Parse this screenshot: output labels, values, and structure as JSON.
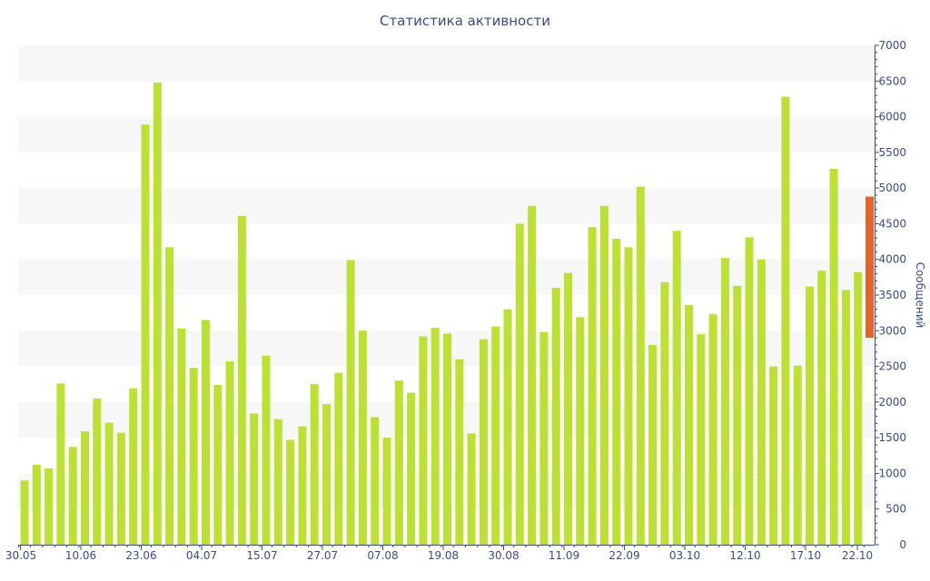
{
  "chart_data": {
    "type": "bar",
    "title": "Статистика активности",
    "ylabel": "Сообщений",
    "xlabel": "",
    "ylim": [
      0,
      7000
    ],
    "y_ticks": [
      0,
      500,
      1000,
      1500,
      2000,
      2500,
      3000,
      3500,
      4000,
      4500,
      5000,
      5500,
      6000,
      6500,
      7000
    ],
    "x_tick_labels": [
      "30.05",
      "10.06",
      "23.06",
      "04.07",
      "15.07",
      "27.07",
      "07.08",
      "19.08",
      "30.08",
      "11.09",
      "22.09",
      "03.10",
      "12.10",
      "17.10",
      "22.10"
    ],
    "x_tick_bar_index": [
      0,
      5,
      10,
      15,
      20,
      25,
      30,
      35,
      40,
      45,
      50,
      55,
      60,
      65,
      70
    ],
    "values": [
      900,
      1120,
      1070,
      2260,
      1370,
      1590,
      2050,
      1710,
      1570,
      2190,
      5890,
      6480,
      4170,
      3030,
      2480,
      3150,
      2240,
      2570,
      4610,
      1840,
      2650,
      1760,
      1470,
      1660,
      2250,
      1970,
      2410,
      3990,
      3000,
      1790,
      1500,
      2300,
      2130,
      2920,
      3040,
      2960,
      2600,
      1560,
      2880,
      3060,
      3300,
      4500,
      4750,
      2980,
      3600,
      3810,
      3190,
      4450,
      4750,
      4290,
      4170,
      5020,
      2800,
      3680,
      4400,
      3360,
      2950,
      3230,
      4020,
      3630,
      4310,
      4000,
      2500,
      6280,
      2510,
      3620,
      3840,
      5270,
      3570,
      3820
    ],
    "bar_color": "#bde132",
    "highlight": {
      "range": [
        2900,
        4880
      ],
      "color": "#e8632b"
    },
    "grid": "alternating horizontal bands",
    "grid_color": "#f7f7f7",
    "axis_color": "#3b4a8a",
    "y_axis_position": "right"
  }
}
